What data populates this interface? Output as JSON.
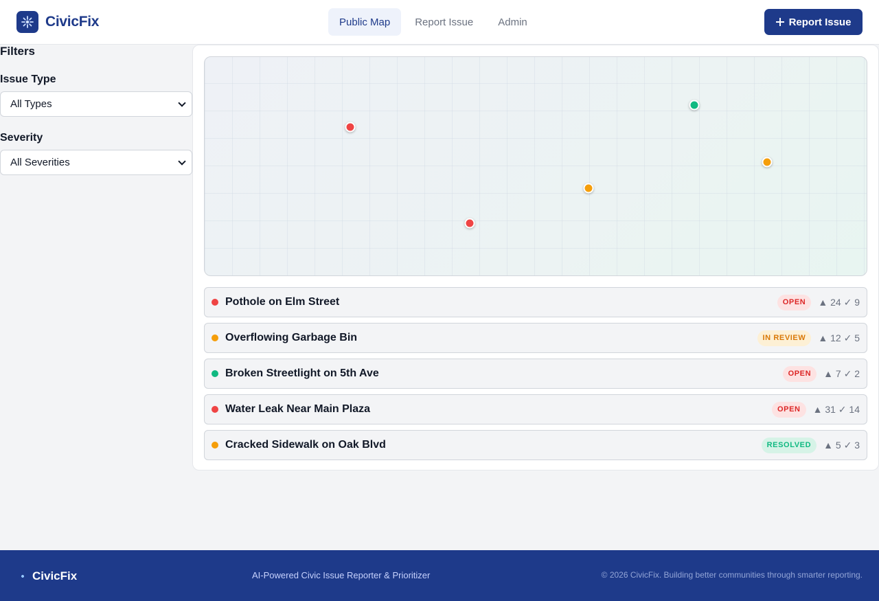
{
  "app": {
    "name": "CivicFix"
  },
  "nav": {
    "tabs": [
      {
        "label": "Public Map",
        "active": true
      },
      {
        "label": "Report Issue",
        "active": false
      },
      {
        "label": "Admin",
        "active": false
      }
    ],
    "report_button": "Report Issue"
  },
  "filters": {
    "title": "Filters",
    "issue_type": {
      "label": "Issue Type",
      "value": "All Types"
    },
    "severity": {
      "label": "Severity",
      "value": "All Severities"
    }
  },
  "colors": {
    "high": "#ef4444",
    "medium": "#f59e0b",
    "low": "#10b981",
    "brand": "#1e3a8a"
  },
  "issues": [
    {
      "title": "Pothole on Elm Street",
      "severity": "high",
      "status": "OPEN",
      "upvotes": "24",
      "verifications": "9"
    },
    {
      "title": "Overflowing Garbage Bin",
      "severity": "medium",
      "status": "IN REVIEW",
      "upvotes": "12",
      "verifications": "5"
    },
    {
      "title": "Broken Streetlight on 5th Ave",
      "severity": "low",
      "status": "OPEN",
      "upvotes": "7",
      "verifications": "2"
    },
    {
      "title": "Water Leak Near Main Plaza",
      "severity": "high",
      "status": "OPEN",
      "upvotes": "31",
      "verifications": "14"
    },
    {
      "title": "Cracked Sidewalk on Oak Blvd",
      "severity": "medium",
      "status": "RESOLVED",
      "upvotes": "5",
      "verifications": "3"
    }
  ],
  "footer": {
    "brand": "CivicFix",
    "tagline": "AI-Powered Civic Issue Reporter & Prioritizer",
    "copyright": "© 2026 CivicFix. Building better communities through smarter reporting."
  }
}
